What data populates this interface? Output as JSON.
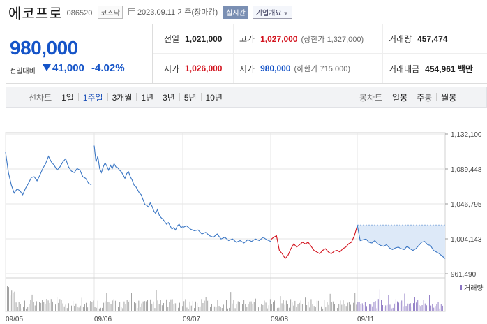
{
  "stock": {
    "name": "에코프로",
    "code": "086520",
    "market": "코스닥",
    "date": "2023.09.11 기준(장마감)",
    "realtime": "실시간",
    "company_info": "기업개요"
  },
  "summary": {
    "price": "980,000",
    "change_label": "전일대비",
    "change_value": "41,000",
    "change_pct": "-4.02%",
    "prev_label": "전일",
    "prev_value": "1,021,000",
    "high_label": "고가",
    "high_value": "1,027,000",
    "upper_limit": "(상한가 1,327,000)",
    "volume_label": "거래량",
    "volume_value": "457,474",
    "open_label": "시가",
    "open_value": "1,026,000",
    "low_label": "저가",
    "low_value": "980,000",
    "lower_limit": "(하한가 715,000)",
    "amount_label": "거래대금",
    "amount_value": "454,961 백만"
  },
  "toolbar": {
    "line_label": "선차트",
    "line_items": [
      "1일",
      "1주일",
      "3개월",
      "1년",
      "3년",
      "5년",
      "10년"
    ],
    "active": "1주일",
    "candle_label": "봉차트",
    "candle_items": [
      "일봉",
      "주봉",
      "월봉"
    ]
  },
  "colors": {
    "up": "#d3131e",
    "down": "#1554c8",
    "line": "#3a76c4",
    "fill": "#dde9f8"
  },
  "chart_data": {
    "type": "line",
    "title": "",
    "xlabel": "",
    "ylabel": "",
    "x_ticks": [
      "09/05",
      "09/06",
      "09/07",
      "09/08",
      "09/11"
    ],
    "y_ticks": [
      "1,132,100",
      "1,089,448",
      "1,046,795",
      "1,004,143",
      "961,490"
    ],
    "ylim": [
      961490,
      1132100
    ],
    "volume_label": "거래량",
    "series": [
      {
        "segment": "09/05-09/06",
        "color": "blue",
        "values": [
          1110000,
          1085000,
          1070000,
          1060000,
          1065000,
          1063000,
          1058000,
          1066000,
          1072000,
          1079000,
          1080000,
          1075000,
          1082000,
          1090000,
          1096000,
          1105000,
          1098000,
          1094000,
          1088000,
          1092000,
          1098000,
          1102000,
          1092000,
          1087000,
          1085000,
          1090000,
          1088000,
          1080000,
          1078000,
          1072000,
          1070000
        ]
      },
      {
        "segment": "09/06",
        "color": "blue",
        "values": [
          1118000,
          1098000,
          1105000,
          1090000,
          1085000,
          1092000,
          1097000,
          1093000,
          1088000,
          1094000,
          1090000,
          1096000,
          1092000,
          1091000,
          1088000,
          1086000,
          1082000,
          1078000,
          1084000,
          1086000,
          1080000,
          1076000,
          1070000,
          1068000,
          1064000,
          1060000,
          1058000,
          1052000,
          1046000,
          1045000,
          1043000,
          1048000,
          1044000,
          1038000,
          1035000,
          1040000,
          1033000,
          1030000,
          1028000,
          1025000,
          1022000,
          1024000,
          1020000,
          1016000,
          1018000,
          1015000,
          1020000,
          1022000,
          1018000,
          1019000
        ]
      },
      {
        "segment": "09/07",
        "color": "blue",
        "values": [
          1018000,
          1020000,
          1016000,
          1014000,
          1015000,
          1010000,
          1012000,
          1008000,
          1006000,
          1010000,
          1004000,
          1006000,
          1002000,
          1004000,
          1000000,
          1002000,
          999000,
          1003000,
          1001000,
          1004000,
          1002000,
          1006000,
          1003000,
          1001000
        ]
      },
      {
        "segment": "09/08",
        "color": "red",
        "values": [
          1003000,
          1006000,
          1008000,
          990000,
          986000,
          980000,
          984000,
          992000,
          998000,
          994000,
          997000,
          1000000,
          998000,
          1000000,
          995000,
          990000,
          988000,
          986000,
          990000,
          992000,
          988000,
          986000,
          989000,
          990000,
          988000,
          992000,
          994000,
          998000,
          1000000,
          1008000,
          1020000
        ]
      },
      {
        "segment": "09/11",
        "color": "blue",
        "values": [
          1021000,
          1002000,
          1003000,
          1004000,
          1000000,
          999000,
          1002000,
          998000,
          996000,
          995000,
          997000,
          993000,
          991000,
          993000,
          994000,
          992000,
          991000,
          995000,
          992000,
          990000,
          992000,
          996000,
          1000000,
          1001000,
          997000,
          996000,
          990000,
          988000,
          986000,
          983000,
          980000
        ]
      }
    ]
  }
}
